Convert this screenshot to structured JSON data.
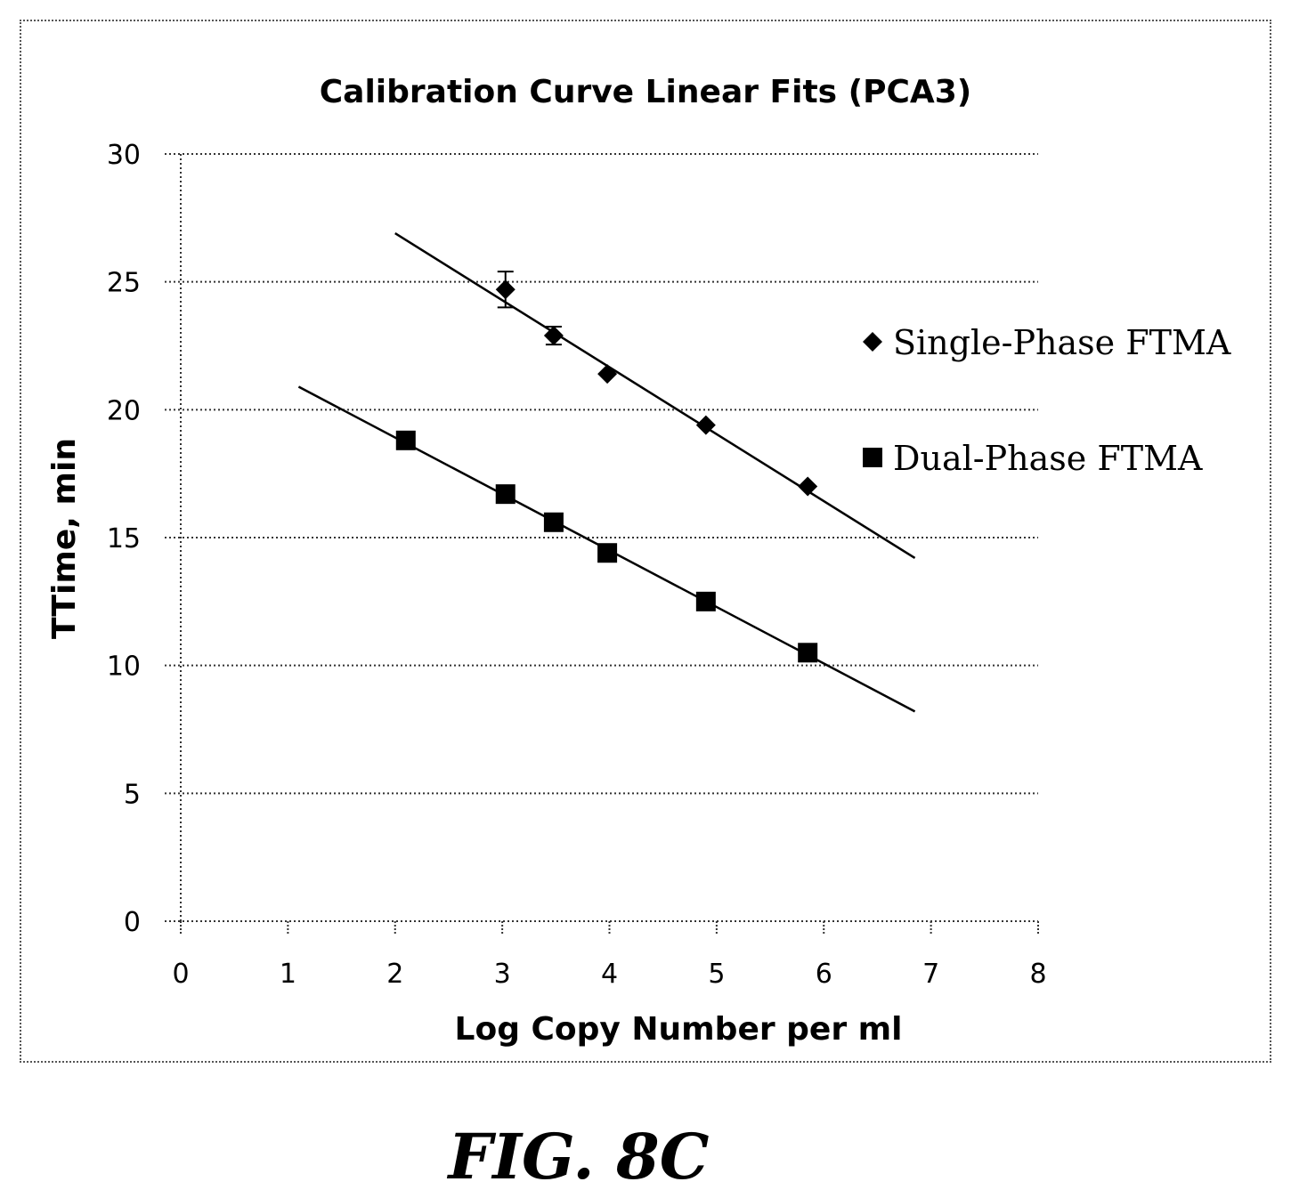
{
  "chart_data": {
    "type": "scatter",
    "title": "Calibration Curve Linear Fits (PCA3)",
    "xlabel": "Log Copy Number per ml",
    "ylabel": "TTime, min",
    "xlim": [
      0,
      8
    ],
    "ylim": [
      0,
      30
    ],
    "x_ticks": [
      "0",
      "1",
      "2",
      "3",
      "4",
      "5",
      "6",
      "7",
      "8"
    ],
    "y_ticks": [
      "0",
      "5",
      "10",
      "15",
      "20",
      "25",
      "30"
    ],
    "grid": "horizontal dotted",
    "legend_position": "right",
    "series": [
      {
        "name": "Single-Phase FTMA",
        "marker": "diamond",
        "x": [
          3.03,
          3.48,
          3.98,
          4.9,
          5.85
        ],
        "y": [
          24.7,
          22.9,
          21.4,
          19.4,
          17.0
        ],
        "error": [
          0.7,
          0.35,
          0,
          0,
          0
        ],
        "fit": {
          "x": [
            2.0,
            6.85
          ],
          "y": [
            26.9,
            14.2
          ]
        }
      },
      {
        "name": "Dual-Phase FTMA",
        "marker": "square",
        "x": [
          2.1,
          3.03,
          3.48,
          3.98,
          4.9,
          5.85
        ],
        "y": [
          18.8,
          16.7,
          15.6,
          14.4,
          12.5,
          10.5
        ],
        "error": [
          0,
          0,
          0,
          0,
          0,
          0
        ],
        "fit": {
          "x": [
            1.1,
            6.85
          ],
          "y": [
            20.9,
            8.2
          ]
        }
      }
    ]
  },
  "caption": "FIG. 8C"
}
